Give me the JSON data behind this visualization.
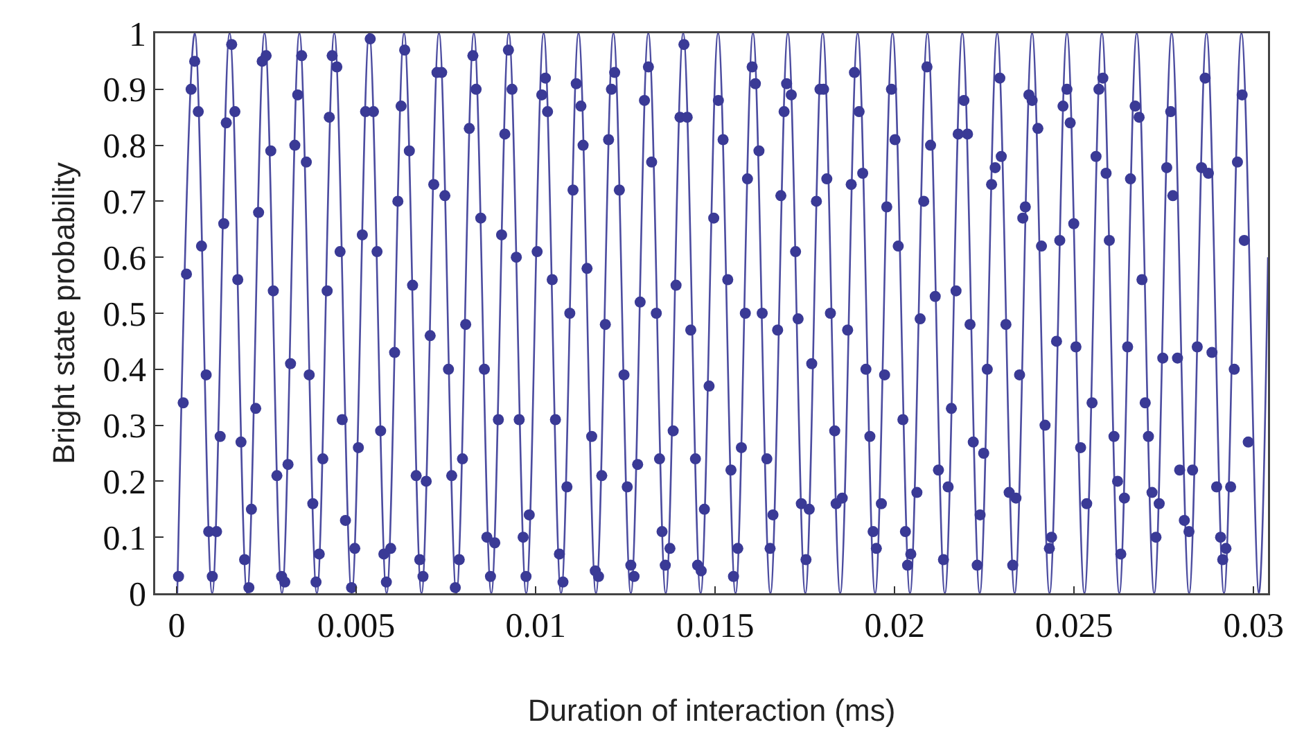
{
  "chart_data": {
    "type": "scatter",
    "xlabel": "Duration of interaction (ms)",
    "ylabel": "Bright state probability",
    "xlim": [
      -0.0006,
      0.0304
    ],
    "xticks": [
      0,
      0.005,
      0.01,
      0.015,
      0.02,
      0.025,
      0.03
    ],
    "ylim": [
      0,
      1
    ],
    "yticks": [
      0,
      0.1,
      0.2,
      0.3,
      0.4,
      0.5,
      0.6,
      0.7,
      0.8,
      0.9,
      1
    ],
    "series": [
      {
        "type": "line",
        "color": "#4c4ca0",
        "marker": "none",
        "line_style": "solid",
        "x": [
          1.5e-05,
          0.000501,
          0.000987,
          0.001473,
          0.001959,
          0.002445,
          0.002931,
          0.003417,
          0.003903,
          0.004389,
          0.004875,
          0.005361,
          0.005847,
          0.006333,
          0.006819,
          0.007305,
          0.007791,
          0.008277,
          0.008763,
          0.009249,
          0.009735,
          0.010221,
          0.010707,
          0.011193,
          0.011679,
          0.012165,
          0.012651,
          0.013137,
          0.013623,
          0.014109,
          0.014595,
          0.015081,
          0.015567,
          0.016053,
          0.016539,
          0.017025,
          0.017511,
          0.017997,
          0.018483,
          0.018969,
          0.019455,
          0.019941,
          0.020427,
          0.020913,
          0.021399,
          0.021885,
          0.022371,
          0.022857,
          0.023343,
          0.023829,
          0.024315,
          0.024801,
          0.025287,
          0.025773,
          0.026259,
          0.026745,
          0.027231,
          0.027717,
          0.028203,
          0.028689,
          0.029175,
          0.029661,
          0.030147,
          0.0304
        ],
        "values": [
          0,
          1,
          0,
          1,
          0,
          1,
          0,
          1,
          0,
          1,
          0,
          1,
          0,
          1,
          0,
          1,
          0,
          1,
          0,
          1,
          0,
          1,
          0,
          1,
          0,
          1,
          0,
          1,
          0,
          1,
          0,
          1,
          0,
          1,
          0,
          1,
          0,
          1,
          0,
          1,
          0,
          1,
          0,
          1,
          0,
          1,
          0,
          1,
          0,
          1,
          0,
          1,
          0,
          1,
          0,
          1,
          0,
          1,
          0,
          1,
          0,
          1,
          0,
          0.6
        ]
      },
      {
        "type": "scatter",
        "color": "#3a3a96",
        "marker": "circle",
        "x": [
          5e-05,
          0.00018,
          0.00027,
          0.0004,
          0.0005,
          0.0006,
          0.00069,
          0.00082,
          0.00089,
          0.00099,
          0.00111,
          0.00121,
          0.00131,
          0.00138,
          0.00153,
          0.00162,
          0.0017,
          0.00179,
          0.00189,
          0.00201,
          0.00208,
          0.0022,
          0.00228,
          0.00238,
          0.00249,
          0.00262,
          0.00269,
          0.00279,
          0.00292,
          0.00301,
          0.0031,
          0.00317,
          0.00329,
          0.00337,
          0.00348,
          0.00361,
          0.00369,
          0.00379,
          0.00388,
          0.00397,
          0.00407,
          0.00419,
          0.00425,
          0.00433,
          0.00446,
          0.00455,
          0.00461,
          0.0047,
          0.00487,
          0.00496,
          0.00506,
          0.00517,
          0.00526,
          0.00539,
          0.00548,
          0.00558,
          0.00568,
          0.00577,
          0.00584,
          0.00596,
          0.00607,
          0.00616,
          0.00625,
          0.00635,
          0.00648,
          0.00657,
          0.00667,
          0.00677,
          0.00686,
          0.00695,
          0.00706,
          0.00716,
          0.00725,
          0.00738,
          0.00747,
          0.00757,
          0.00766,
          0.00776,
          0.00787,
          0.00796,
          0.00805,
          0.00815,
          0.00825,
          0.00834,
          0.00847,
          0.00857,
          0.00864,
          0.00874,
          0.00886,
          0.00896,
          0.00905,
          0.00914,
          0.00924,
          0.00934,
          0.00946,
          0.00954,
          0.00965,
          0.00973,
          0.00982,
          0.01004,
          0.01017,
          0.01027,
          0.01033,
          0.01046,
          0.01055,
          0.01066,
          0.01076,
          0.01087,
          0.01095,
          0.01104,
          0.01113,
          0.01126,
          0.01132,
          0.01143,
          0.01156,
          0.01166,
          0.01175,
          0.01184,
          0.01194,
          0.01203,
          0.01211,
          0.0122,
          0.01233,
          0.01246,
          0.01255,
          0.01265,
          0.01274,
          0.01284,
          0.01291,
          0.01303,
          0.01314,
          0.01323,
          0.01336,
          0.01345,
          0.01352,
          0.01361,
          0.01374,
          0.01383,
          0.01391,
          0.01402,
          0.01413,
          0.01422,
          0.01432,
          0.01445,
          0.01451,
          0.01461,
          0.0147,
          0.01483,
          0.01496,
          0.01509,
          0.01522,
          0.01535,
          0.01544,
          0.01551,
          0.01563,
          0.01573,
          0.01584,
          0.0159,
          0.01603,
          0.01612,
          0.01622,
          0.01631,
          0.01644,
          0.01653,
          0.01661,
          0.01674,
          0.01683,
          0.01692,
          0.01699,
          0.01712,
          0.01724,
          0.01731,
          0.0174,
          0.01753,
          0.01762,
          0.01769,
          0.01782,
          0.01792,
          0.01802,
          0.01811,
          0.01821,
          0.01833,
          0.01837,
          0.01854,
          0.01869,
          0.01879,
          0.01888,
          0.01901,
          0.01911,
          0.0192,
          0.01931,
          0.0194,
          0.01949,
          0.01963,
          0.01972,
          0.01978,
          0.01991,
          0.02001,
          0.0201,
          0.02023,
          0.0203,
          0.02036,
          0.02045,
          0.02062,
          0.02071,
          0.02081,
          0.0209,
          0.021,
          0.02113,
          0.02122,
          0.02136,
          0.02149,
          0.02158,
          0.02171,
          0.02177,
          0.02193,
          0.02203,
          0.0221,
          0.02219,
          0.0223,
          0.02238,
          0.02248,
          0.02258,
          0.0227,
          0.0228,
          0.02293,
          0.02297,
          0.0231,
          0.02319,
          0.02329,
          0.02338,
          0.02348,
          0.02357,
          0.02364,
          0.02374,
          0.02383,
          0.02399,
          0.02409,
          0.02419,
          0.02431,
          0.02437,
          0.02451,
          0.0246,
          0.02469,
          0.0248,
          0.02489,
          0.02499,
          0.02505,
          0.02518,
          0.02535,
          0.0255,
          0.02561,
          0.02569,
          0.0258,
          0.02589,
          0.02598,
          0.02611,
          0.02621,
          0.0263,
          0.0264,
          0.02649,
          0.02657,
          0.0267,
          0.02681,
          0.02689,
          0.02698,
          0.02707,
          0.02717,
          0.02728,
          0.02737,
          0.02747,
          0.02758,
          0.02769,
          0.02775,
          0.02788,
          0.02794,
          0.02807,
          0.0282,
          0.0283,
          0.02843,
          0.02855,
          0.02865,
          0.02874,
          0.02884,
          0.02897,
          0.02908,
          0.02914,
          0.02923,
          0.02936,
          0.02946,
          0.02955,
          0.02968,
          0.02974,
          0.02985
        ],
        "values": [
          0.03,
          0.34,
          0.57,
          0.9,
          0.95,
          0.86,
          0.62,
          0.39,
          0.11,
          0.03,
          0.11,
          0.28,
          0.66,
          0.84,
          0.98,
          0.86,
          0.56,
          0.27,
          0.06,
          0.01,
          0.15,
          0.33,
          0.68,
          0.95,
          0.96,
          0.79,
          0.54,
          0.21,
          0.03,
          0.02,
          0.23,
          0.41,
          0.8,
          0.89,
          0.96,
          0.77,
          0.39,
          0.16,
          0.02,
          0.07,
          0.24,
          0.54,
          0.85,
          0.96,
          0.94,
          0.61,
          0.31,
          0.13,
          0.01,
          0.08,
          0.26,
          0.64,
          0.86,
          0.99,
          0.86,
          0.61,
          0.29,
          0.07,
          0.02,
          0.08,
          0.43,
          0.7,
          0.87,
          0.97,
          0.79,
          0.55,
          0.21,
          0.06,
          0.03,
          0.2,
          0.46,
          0.73,
          0.93,
          0.93,
          0.71,
          0.4,
          0.21,
          0.01,
          0.06,
          0.24,
          0.48,
          0.83,
          0.96,
          0.9,
          0.67,
          0.4,
          0.1,
          0.03,
          0.09,
          0.31,
          0.64,
          0.82,
          0.97,
          0.9,
          0.6,
          0.31,
          0.1,
          0.03,
          0.14,
          0.61,
          0.89,
          0.92,
          0.86,
          0.56,
          0.31,
          0.07,
          0.02,
          0.19,
          0.5,
          0.72,
          0.91,
          0.87,
          0.8,
          0.58,
          0.28,
          0.04,
          0.03,
          0.21,
          0.48,
          0.81,
          0.9,
          0.93,
          0.72,
          0.39,
          0.19,
          0.05,
          0.03,
          0.23,
          0.52,
          0.88,
          0.94,
          0.77,
          0.5,
          0.24,
          0.11,
          0.05,
          0.08,
          0.29,
          0.55,
          0.85,
          0.98,
          0.85,
          0.47,
          0.24,
          0.05,
          0.04,
          0.15,
          0.37,
          0.67,
          0.88,
          0.81,
          0.56,
          0.22,
          0.03,
          0.08,
          0.26,
          0.5,
          0.74,
          0.94,
          0.91,
          0.79,
          0.5,
          0.24,
          0.08,
          0.14,
          0.47,
          0.71,
          0.86,
          0.91,
          0.89,
          0.61,
          0.49,
          0.16,
          0.06,
          0.15,
          0.41,
          0.7,
          0.9,
          0.9,
          0.74,
          0.5,
          0.29,
          0.16,
          0.17,
          0.47,
          0.73,
          0.93,
          0.86,
          0.75,
          0.4,
          0.28,
          0.11,
          0.08,
          0.16,
          0.39,
          0.69,
          0.9,
          0.81,
          0.62,
          0.31,
          0.11,
          0.05,
          0.07,
          0.18,
          0.49,
          0.7,
          0.94,
          0.8,
          0.53,
          0.22,
          0.06,
          0.19,
          0.33,
          0.54,
          0.82,
          0.88,
          0.82,
          0.48,
          0.27,
          0.05,
          0.14,
          0.25,
          0.4,
          0.73,
          0.76,
          0.92,
          0.78,
          0.48,
          0.18,
          0.05,
          0.17,
          0.39,
          0.67,
          0.69,
          0.89,
          0.88,
          0.83,
          0.62,
          0.3,
          0.08,
          0.1,
          0.45,
          0.63,
          0.87,
          0.9,
          0.84,
          0.66,
          0.44,
          0.26,
          0.16,
          0.34,
          0.78,
          0.9,
          0.92,
          0.75,
          0.63,
          0.28,
          0.2,
          0.07,
          0.17,
          0.44,
          0.74,
          0.87,
          0.85,
          0.56,
          0.34,
          0.28,
          0.18,
          0.1,
          0.16,
          0.42,
          0.76,
          0.86,
          0.71,
          0.42,
          0.22,
          0.13,
          0.11,
          0.22,
          0.44,
          0.76,
          0.92,
          0.75,
          0.43,
          0.19,
          0.1,
          0.06,
          0.08,
          0.19,
          0.4,
          0.77,
          0.89,
          0.63,
          0.27
        ]
      }
    ]
  }
}
